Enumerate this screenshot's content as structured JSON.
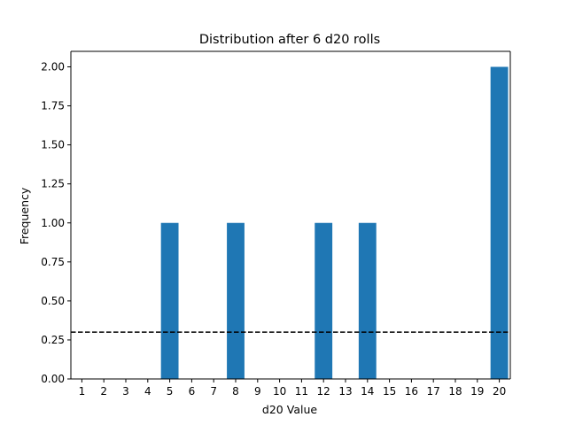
{
  "chart_data": {
    "type": "bar",
    "title": "Distribution after 6 d20 rolls",
    "xlabel": "d20 Value",
    "ylabel": "Frequency",
    "categories": [
      "1",
      "2",
      "3",
      "4",
      "5",
      "6",
      "7",
      "8",
      "9",
      "10",
      "11",
      "12",
      "13",
      "14",
      "15",
      "16",
      "17",
      "18",
      "19",
      "20"
    ],
    "values": [
      0,
      0,
      0,
      0,
      1,
      0,
      0,
      1,
      0,
      0,
      0,
      1,
      0,
      1,
      0,
      0,
      0,
      0,
      0,
      2
    ],
    "ylim": [
      0,
      2.0
    ],
    "yticks": [
      "0.00",
      "0.25",
      "0.50",
      "0.75",
      "1.00",
      "1.25",
      "1.50",
      "1.75",
      "2.00"
    ],
    "reference_line": {
      "y": 0.3,
      "style": "dashed",
      "color": "#000000"
    },
    "bar_color": "#1f77b4",
    "grid": false,
    "legend": "none"
  }
}
